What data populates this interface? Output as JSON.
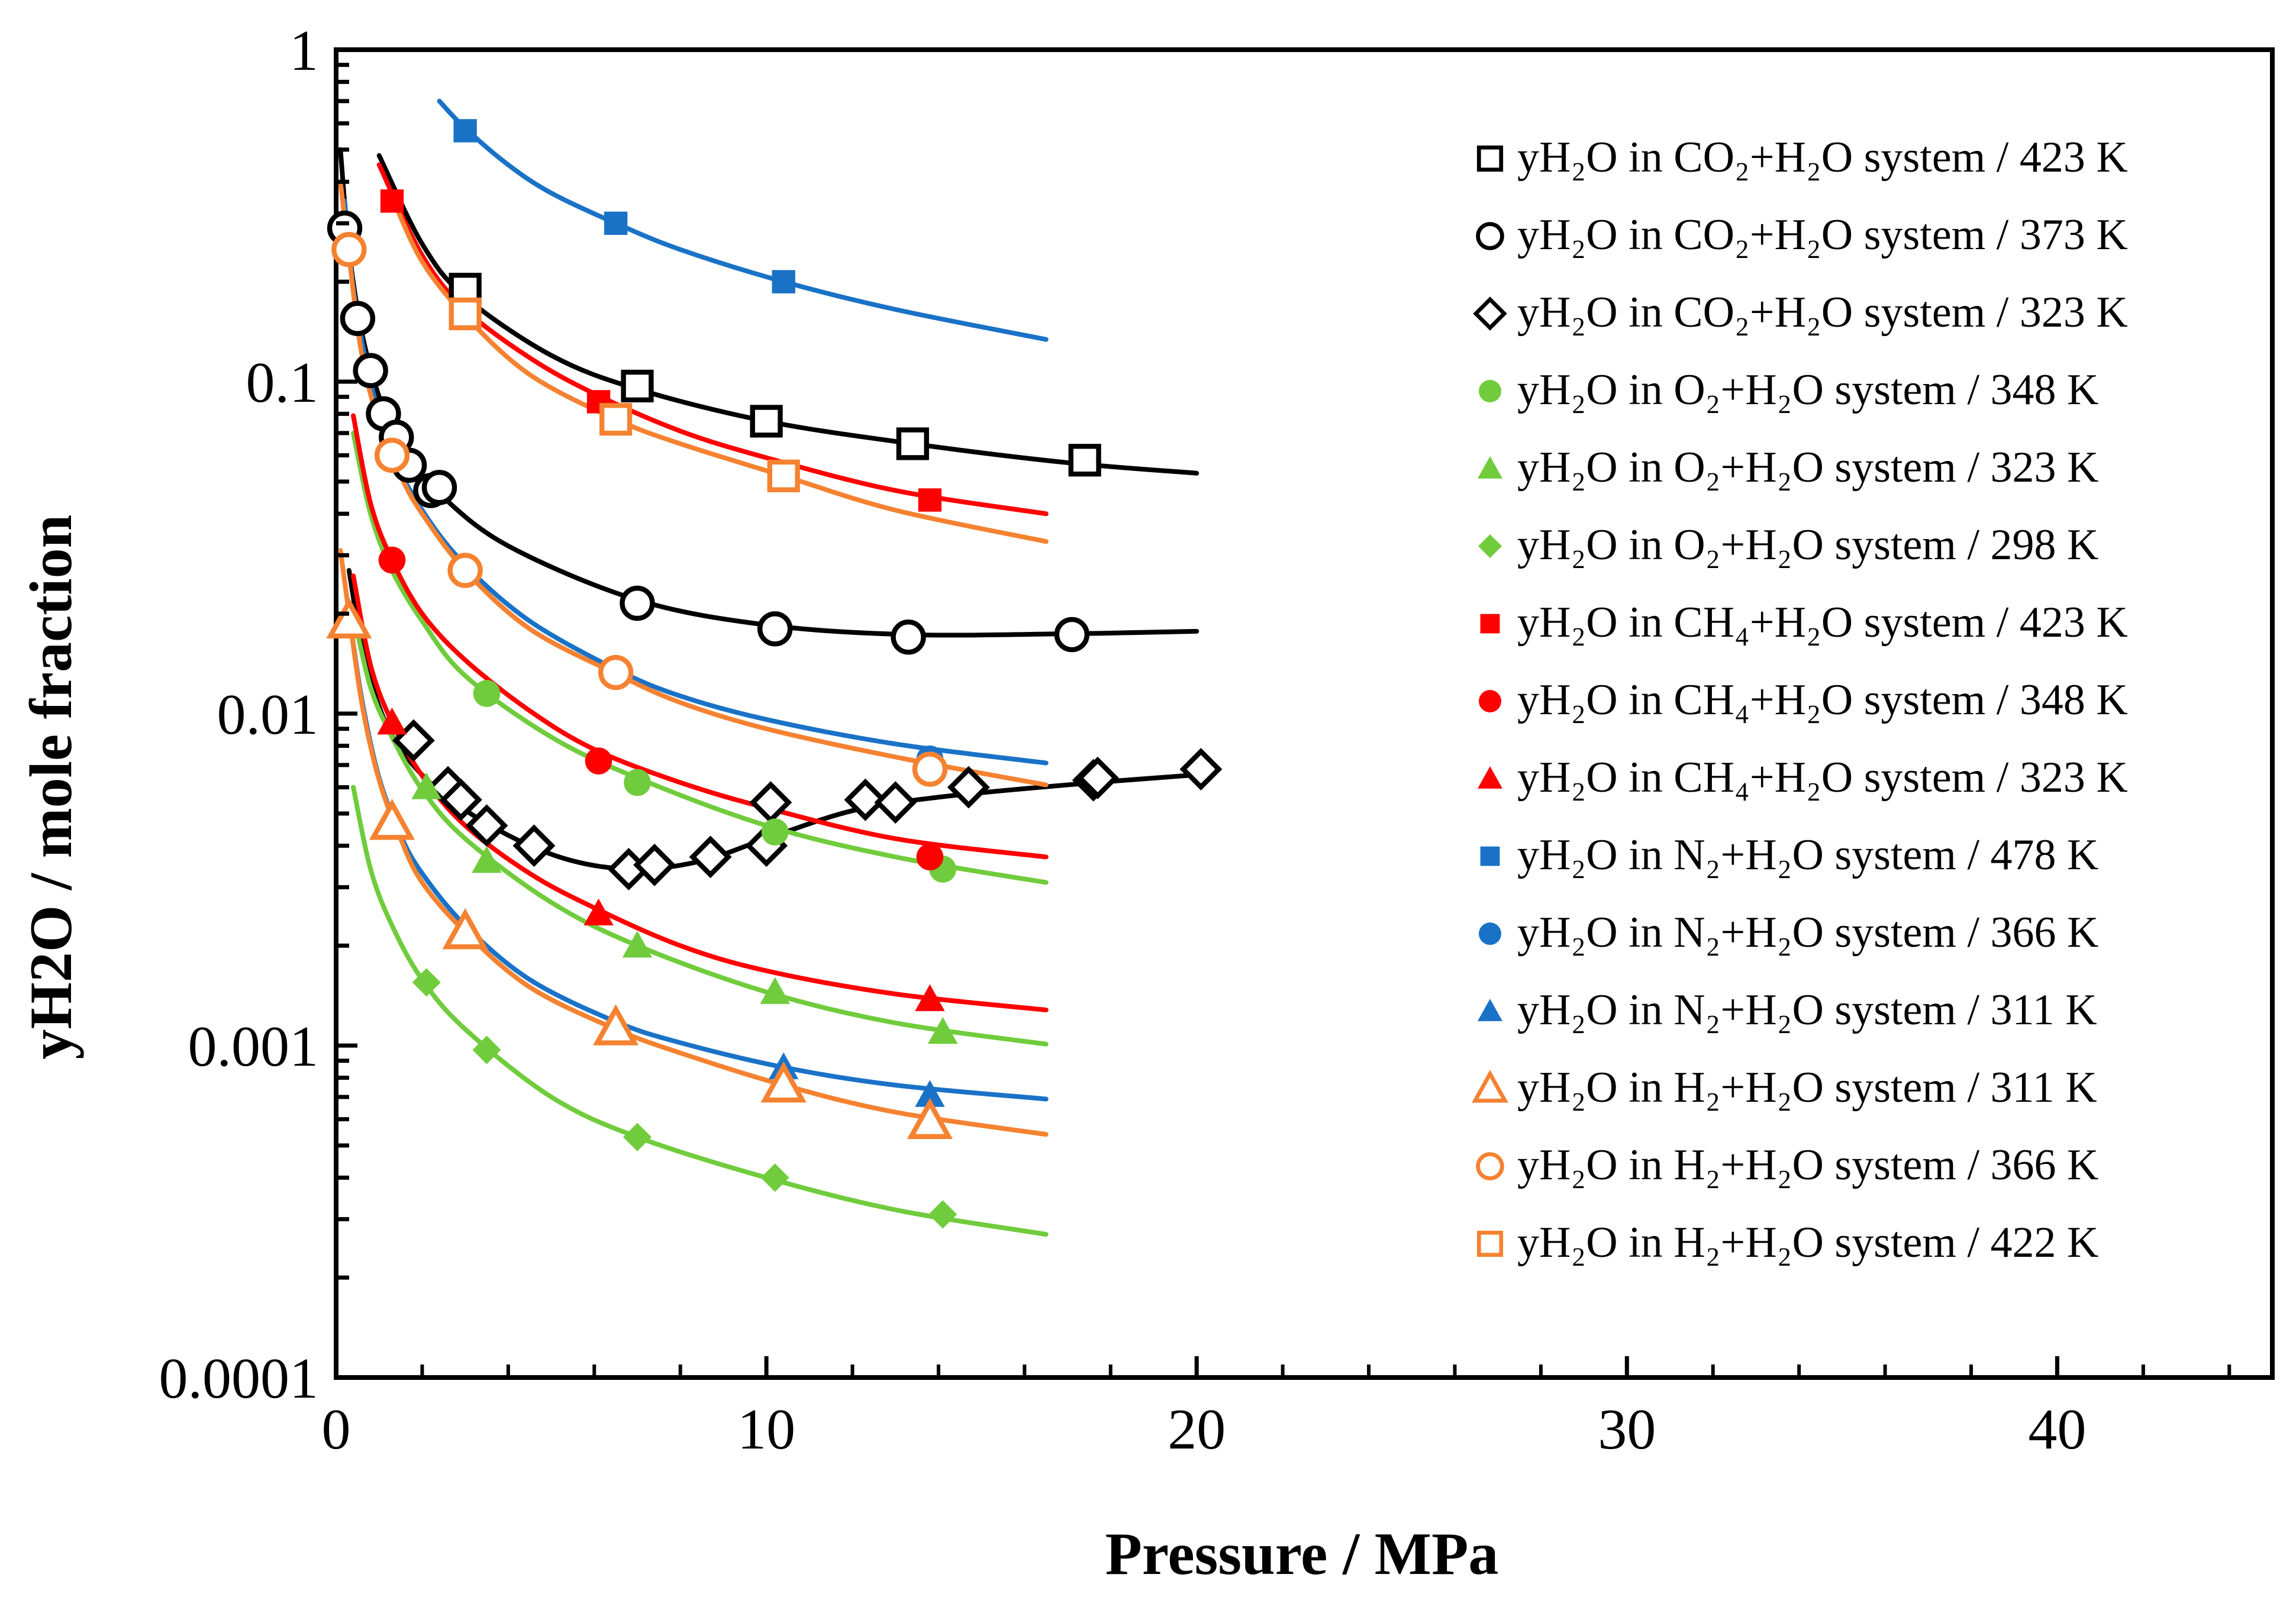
{
  "chart_data": {
    "type": "scatter",
    "title": "",
    "xlabel": "Pressure / MPa",
    "ylabel": "yH2O / mole fraction",
    "xlim": [
      0,
      45
    ],
    "ylim": [
      0.0001,
      1
    ],
    "yscale": "log",
    "grid": false,
    "legend_position": "right",
    "x_ticks": [
      "0",
      "10",
      "20",
      "30",
      "40"
    ],
    "y_ticks": [
      "0.0001",
      "0.001",
      "0.01",
      "0.1",
      "1"
    ],
    "series": [
      {
        "name": "yH₂O in CO₂+H₂O system / 423 K",
        "marker": "square",
        "fill": "open",
        "color": "#000000",
        "points": [
          [
            3.0,
            0.19
          ],
          [
            7.0,
            0.097
          ],
          [
            10.0,
            0.076
          ],
          [
            13.4,
            0.065
          ],
          [
            17.4,
            0.058
          ]
        ],
        "curve": [
          [
            1.0,
            0.48
          ],
          [
            2,
            0.26
          ],
          [
            3,
            0.18
          ],
          [
            5,
            0.12
          ],
          [
            7,
            0.095
          ],
          [
            10,
            0.076
          ],
          [
            13.4,
            0.065
          ],
          [
            17,
            0.057
          ],
          [
            20,
            0.053
          ]
        ]
      },
      {
        "name": "yH₂O in CO₂+H₂O system / 373 K",
        "marker": "circle",
        "fill": "open",
        "color": "#000000",
        "points": [
          [
            0.2,
            0.29
          ],
          [
            0.5,
            0.155
          ],
          [
            0.8,
            0.108
          ],
          [
            1.1,
            0.08
          ],
          [
            1.4,
            0.068
          ],
          [
            1.7,
            0.056
          ],
          [
            2.2,
            0.047
          ],
          [
            2.4,
            0.048
          ],
          [
            7.0,
            0.0215
          ],
          [
            10.2,
            0.018
          ],
          [
            13.3,
            0.017
          ],
          [
            17.1,
            0.0173
          ]
        ],
        "curve": [
          [
            0.1,
            0.5
          ],
          [
            0.3,
            0.25
          ],
          [
            0.6,
            0.14
          ],
          [
            1,
            0.09
          ],
          [
            1.5,
            0.063
          ],
          [
            2.4,
            0.046
          ],
          [
            4,
            0.032
          ],
          [
            7,
            0.022
          ],
          [
            10,
            0.0185
          ],
          [
            13.3,
            0.0173
          ],
          [
            17,
            0.0174
          ],
          [
            20,
            0.0177
          ]
        ]
      },
      {
        "name": "yH₂O in CO₂+H₂O system / 323 K",
        "marker": "diamond",
        "fill": "open",
        "color": "#000000",
        "points": [
          [
            1.8,
            0.0083
          ],
          [
            2.6,
            0.006
          ],
          [
            2.9,
            0.0055
          ],
          [
            3.5,
            0.0046
          ],
          [
            4.6,
            0.004
          ],
          [
            6.8,
            0.0034
          ],
          [
            7.4,
            0.0035
          ],
          [
            8.7,
            0.0037
          ],
          [
            10.0,
            0.004
          ],
          [
            10.1,
            0.0054
          ],
          [
            12.3,
            0.0055
          ],
          [
            13.0,
            0.0054
          ],
          [
            14.7,
            0.006
          ],
          [
            17.6,
            0.0063
          ],
          [
            17.7,
            0.0064
          ],
          [
            20.1,
            0.0068
          ]
        ],
        "curve": [
          [
            0.3,
            0.027
          ],
          [
            0.6,
            0.016
          ],
          [
            1,
            0.0105
          ],
          [
            1.5,
            0.0078
          ],
          [
            2.5,
            0.0057
          ],
          [
            4,
            0.0043
          ],
          [
            5.5,
            0.0036
          ],
          [
            7,
            0.0034
          ],
          [
            8.5,
            0.0036
          ],
          [
            10,
            0.0042
          ],
          [
            12,
            0.0051
          ],
          [
            14,
            0.0056
          ],
          [
            17,
            0.0061
          ],
          [
            20.4,
            0.0066
          ]
        ]
      },
      {
        "name": "yH₂O in O₂+H₂O system / 348 K",
        "marker": "circle",
        "fill": "filled",
        "color": "#70cc3c",
        "points": [
          [
            3.5,
            0.0115
          ],
          [
            7.0,
            0.0062
          ],
          [
            10.2,
            0.0044
          ],
          [
            14.1,
            0.0034
          ]
        ],
        "curve": [
          [
            0.4,
            0.07
          ],
          [
            0.8,
            0.04
          ],
          [
            1.3,
            0.027
          ],
          [
            2,
            0.019
          ],
          [
            3,
            0.013
          ],
          [
            5,
            0.0085
          ],
          [
            7,
            0.0064
          ],
          [
            10,
            0.0046
          ],
          [
            13,
            0.0037
          ],
          [
            16.5,
            0.0031
          ]
        ]
      },
      {
        "name": "yH₂O in O₂+H₂O system / 323 K",
        "marker": "triangle",
        "fill": "filled",
        "color": "#70cc3c",
        "points": [
          [
            2.1,
            0.006
          ],
          [
            3.5,
            0.0036
          ],
          [
            7.0,
            0.002
          ],
          [
            10.2,
            0.00145
          ],
          [
            14.1,
            0.0011
          ]
        ],
        "curve": [
          [
            0.4,
            0.02
          ],
          [
            0.8,
            0.012
          ],
          [
            1.3,
            0.0085
          ],
          [
            2,
            0.0059
          ],
          [
            3,
            0.0042
          ],
          [
            5,
            0.0027
          ],
          [
            7,
            0.002
          ],
          [
            10,
            0.00145
          ],
          [
            13,
            0.00117
          ],
          [
            16.5,
            0.00101
          ]
        ]
      },
      {
        "name": "yH₂O in O₂+H₂O system / 298 K",
        "marker": "diamond",
        "fill": "filled",
        "color": "#70cc3c",
        "points": [
          [
            2.1,
            0.00155
          ],
          [
            3.5,
            0.00097
          ],
          [
            7.0,
            0.00053
          ],
          [
            10.2,
            0.0004
          ],
          [
            14.1,
            0.00031
          ]
        ],
        "curve": [
          [
            0.4,
            0.006
          ],
          [
            0.8,
            0.0034
          ],
          [
            1.3,
            0.0023
          ],
          [
            2,
            0.00158
          ],
          [
            3,
            0.00112
          ],
          [
            5,
            0.0007
          ],
          [
            7,
            0.00053
          ],
          [
            10,
            0.0004
          ],
          [
            13,
            0.00032
          ],
          [
            16.5,
            0.00027
          ]
        ]
      },
      {
        "name": "yH₂O in CH₄+H₂O system / 423 K",
        "marker": "square",
        "fill": "filled",
        "color": "#ff0000",
        "points": [
          [
            1.3,
            0.35
          ],
          [
            6.1,
            0.087
          ],
          [
            13.8,
            0.044
          ]
        ],
        "curve": [
          [
            1.0,
            0.45
          ],
          [
            2,
            0.24
          ],
          [
            3,
            0.165
          ],
          [
            4.5,
            0.118
          ],
          [
            6,
            0.092
          ],
          [
            8,
            0.071
          ],
          [
            10,
            0.059
          ],
          [
            13,
            0.047
          ],
          [
            16.5,
            0.04
          ]
        ]
      },
      {
        "name": "yH₂O in CH₄+H₂O system / 348 K",
        "marker": "circle",
        "fill": "filled",
        "color": "#ff0000",
        "points": [
          [
            1.3,
            0.029
          ],
          [
            6.1,
            0.0072
          ],
          [
            13.8,
            0.0037
          ]
        ],
        "curve": [
          [
            0.4,
            0.079
          ],
          [
            0.8,
            0.043
          ],
          [
            1.3,
            0.029
          ],
          [
            2,
            0.02
          ],
          [
            3,
            0.0145
          ],
          [
            4.5,
            0.0102
          ],
          [
            6,
            0.0078
          ],
          [
            8,
            0.0062
          ],
          [
            10,
            0.0052
          ],
          [
            13,
            0.0042
          ],
          [
            16.5,
            0.0037
          ]
        ]
      },
      {
        "name": "yH₂O in CH₄+H₂O system / 323 K",
        "marker": "triangle",
        "fill": "filled",
        "color": "#ff0000",
        "points": [
          [
            1.3,
            0.0094
          ],
          [
            6.1,
            0.0025
          ],
          [
            13.8,
            0.00138
          ]
        ],
        "curve": [
          [
            0.4,
            0.026
          ],
          [
            0.8,
            0.014
          ],
          [
            1.3,
            0.0094
          ],
          [
            2,
            0.0065
          ],
          [
            3,
            0.0046
          ],
          [
            4.5,
            0.0033
          ],
          [
            6,
            0.0026
          ],
          [
            8,
            0.002
          ],
          [
            10,
            0.00168
          ],
          [
            13,
            0.00143
          ],
          [
            16.5,
            0.00128
          ]
        ]
      },
      {
        "name": "yH₂O in N₂+H₂O system / 478 K",
        "marker": "square",
        "fill": "filled",
        "color": "#1a72c7",
        "points": [
          [
            3.0,
            0.57
          ],
          [
            6.5,
            0.3
          ],
          [
            10.4,
            0.2
          ]
        ],
        "curve": [
          [
            2.4,
            0.7
          ],
          [
            3,
            0.58
          ],
          [
            4,
            0.45
          ],
          [
            5,
            0.37
          ],
          [
            6.5,
            0.3
          ],
          [
            8,
            0.25
          ],
          [
            10.4,
            0.2
          ],
          [
            13,
            0.165
          ],
          [
            16.5,
            0.134
          ]
        ]
      },
      {
        "name": "yH₂O in N₂+H₂O system / 366 K",
        "marker": "circle",
        "fill": "filled",
        "color": "#1a72c7",
        "points": [
          [
            0.3,
            0.25
          ],
          [
            1.3,
            0.06
          ],
          [
            3.0,
            0.027
          ],
          [
            6.5,
            0.0135
          ],
          [
            13.8,
            0.0073
          ]
        ],
        "curve": [
          [
            0.2,
            0.35
          ],
          [
            0.4,
            0.19
          ],
          [
            0.8,
            0.1
          ],
          [
            1.3,
            0.061
          ],
          [
            2,
            0.041
          ],
          [
            3,
            0.028
          ],
          [
            4.5,
            0.019
          ],
          [
            6.5,
            0.0136
          ],
          [
            8,
            0.0113
          ],
          [
            10,
            0.0096
          ],
          [
            13,
            0.0081
          ],
          [
            16.5,
            0.0071
          ]
        ]
      },
      {
        "name": "yH₂O in N₂+H₂O system / 311 K",
        "marker": "triangle",
        "fill": "filled",
        "color": "#1a72c7",
        "points": [
          [
            0.3,
            0.019
          ],
          [
            1.3,
            0.0048
          ],
          [
            3.0,
            0.0023
          ],
          [
            6.5,
            0.00118
          ],
          [
            10.4,
            0.00086
          ],
          [
            13.8,
            0.00071
          ]
        ],
        "curve": [
          [
            0.3,
            0.02
          ],
          [
            0.6,
            0.011
          ],
          [
            1.0,
            0.0064
          ],
          [
            1.5,
            0.0043
          ],
          [
            2,
            0.0033
          ],
          [
            3,
            0.0023
          ],
          [
            4.5,
            0.00158
          ],
          [
            6.5,
            0.00118
          ],
          [
            8,
            0.00102
          ],
          [
            10.4,
            0.00086
          ],
          [
            13,
            0.00076
          ],
          [
            16.5,
            0.00069
          ]
        ]
      },
      {
        "name": "yH₂O in H₂+H₂O system / 311 K",
        "marker": "triangle",
        "fill": "open",
        "color": "#f58231",
        "points": [
          [
            0.3,
            0.019
          ],
          [
            1.3,
            0.0047
          ],
          [
            3.0,
            0.0022
          ],
          [
            6.5,
            0.00113
          ],
          [
            10.4,
            0.00076
          ],
          [
            13.8,
            0.00059
          ]
        ],
        "curve": [
          [
            0.1,
            0.031
          ],
          [
            0.3,
            0.02
          ],
          [
            0.6,
            0.0107
          ],
          [
            1.0,
            0.0063
          ],
          [
            1.5,
            0.0042
          ],
          [
            2,
            0.0031
          ],
          [
            3,
            0.0022
          ],
          [
            4.5,
            0.0015
          ],
          [
            6.5,
            0.00112
          ],
          [
            8,
            0.00095
          ],
          [
            10.4,
            0.00076
          ],
          [
            13,
            0.00063
          ],
          [
            16.5,
            0.00054
          ]
        ]
      },
      {
        "name": "yH₂O in H₂+H₂O system / 366 K",
        "marker": "circle",
        "fill": "open",
        "color": "#f58231",
        "points": [
          [
            0.3,
            0.25
          ],
          [
            1.3,
            0.06
          ],
          [
            3.0,
            0.027
          ],
          [
            6.5,
            0.0133
          ],
          [
            13.8,
            0.0068
          ]
        ],
        "curve": [
          [
            0.1,
            0.4
          ],
          [
            0.3,
            0.24
          ],
          [
            0.6,
            0.12
          ],
          [
            1.0,
            0.075
          ],
          [
            1.5,
            0.052
          ],
          [
            2,
            0.04
          ],
          [
            3,
            0.027
          ],
          [
            4.5,
            0.018
          ],
          [
            6.5,
            0.0132
          ],
          [
            8,
            0.0108
          ],
          [
            10,
            0.009
          ],
          [
            13,
            0.0074
          ],
          [
            16.5,
            0.0061
          ]
        ]
      },
      {
        "name": "yH₂O in H₂+H₂O system / 422 K",
        "marker": "square",
        "fill": "open",
        "color": "#f58231",
        "points": [
          [
            3.0,
            0.16
          ],
          [
            6.5,
            0.077
          ],
          [
            10.4,
            0.052
          ]
        ],
        "curve": [
          [
            1.3,
            0.36
          ],
          [
            2,
            0.23
          ],
          [
            3,
            0.158
          ],
          [
            4.5,
            0.105
          ],
          [
            6.5,
            0.077
          ],
          [
            8,
            0.065
          ],
          [
            10.4,
            0.052
          ],
          [
            13,
            0.041
          ],
          [
            16.5,
            0.033
          ]
        ]
      }
    ]
  }
}
